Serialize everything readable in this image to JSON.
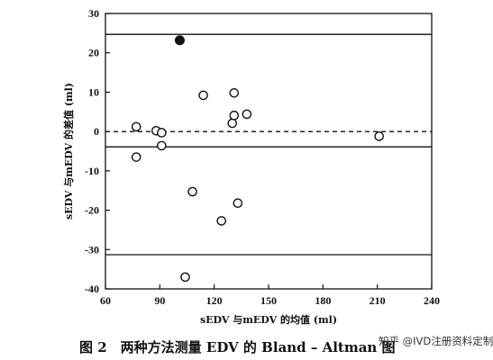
{
  "chart_data": {
    "type": "scatter",
    "xlabel": "sEDV 与mEDV 的均值 (ml)",
    "ylabel": "sEDV 与mEDV 的差值 (ml)",
    "xlim": [
      60,
      240
    ],
    "ylim": [
      -40,
      30
    ],
    "xticks": [
      60,
      90,
      120,
      150,
      180,
      210,
      240
    ],
    "yticks": [
      -40,
      -30,
      -20,
      -10,
      0,
      10,
      20,
      30
    ],
    "grid": false,
    "reference_lines": [
      {
        "name": "upper limit",
        "y": 24.7,
        "style": "solid"
      },
      {
        "name": "zero",
        "y": 0,
        "style": "dashed"
      },
      {
        "name": "mean difference",
        "y": -3.9,
        "style": "solid"
      },
      {
        "name": "lower limit",
        "y": -31.3,
        "style": "solid"
      }
    ],
    "series": [
      {
        "marker": "open-circle",
        "points": [
          [
            77,
            1.2
          ],
          [
            77,
            -6.5
          ],
          [
            88,
            0.2
          ],
          [
            91,
            -0.3
          ],
          [
            91,
            -3.6
          ],
          [
            104,
            -37.0
          ],
          [
            108,
            -15.3
          ],
          [
            114,
            9.2
          ],
          [
            124,
            -22.7
          ],
          [
            130,
            2.1
          ],
          [
            131,
            9.8
          ],
          [
            131,
            4.1
          ],
          [
            133,
            -18.2
          ],
          [
            138,
            4.4
          ],
          [
            211,
            -1.2
          ]
        ]
      },
      {
        "marker": "filled-circle",
        "points": [
          [
            101,
            23.2
          ]
        ]
      }
    ],
    "caption": "图 2　两种方法测量 EDV 的 Bland – Altman 图"
  },
  "watermark": "知乎 @IVD注册资料定制",
  "colors": {
    "ink": "#111111",
    "background": "#ffffff"
  }
}
